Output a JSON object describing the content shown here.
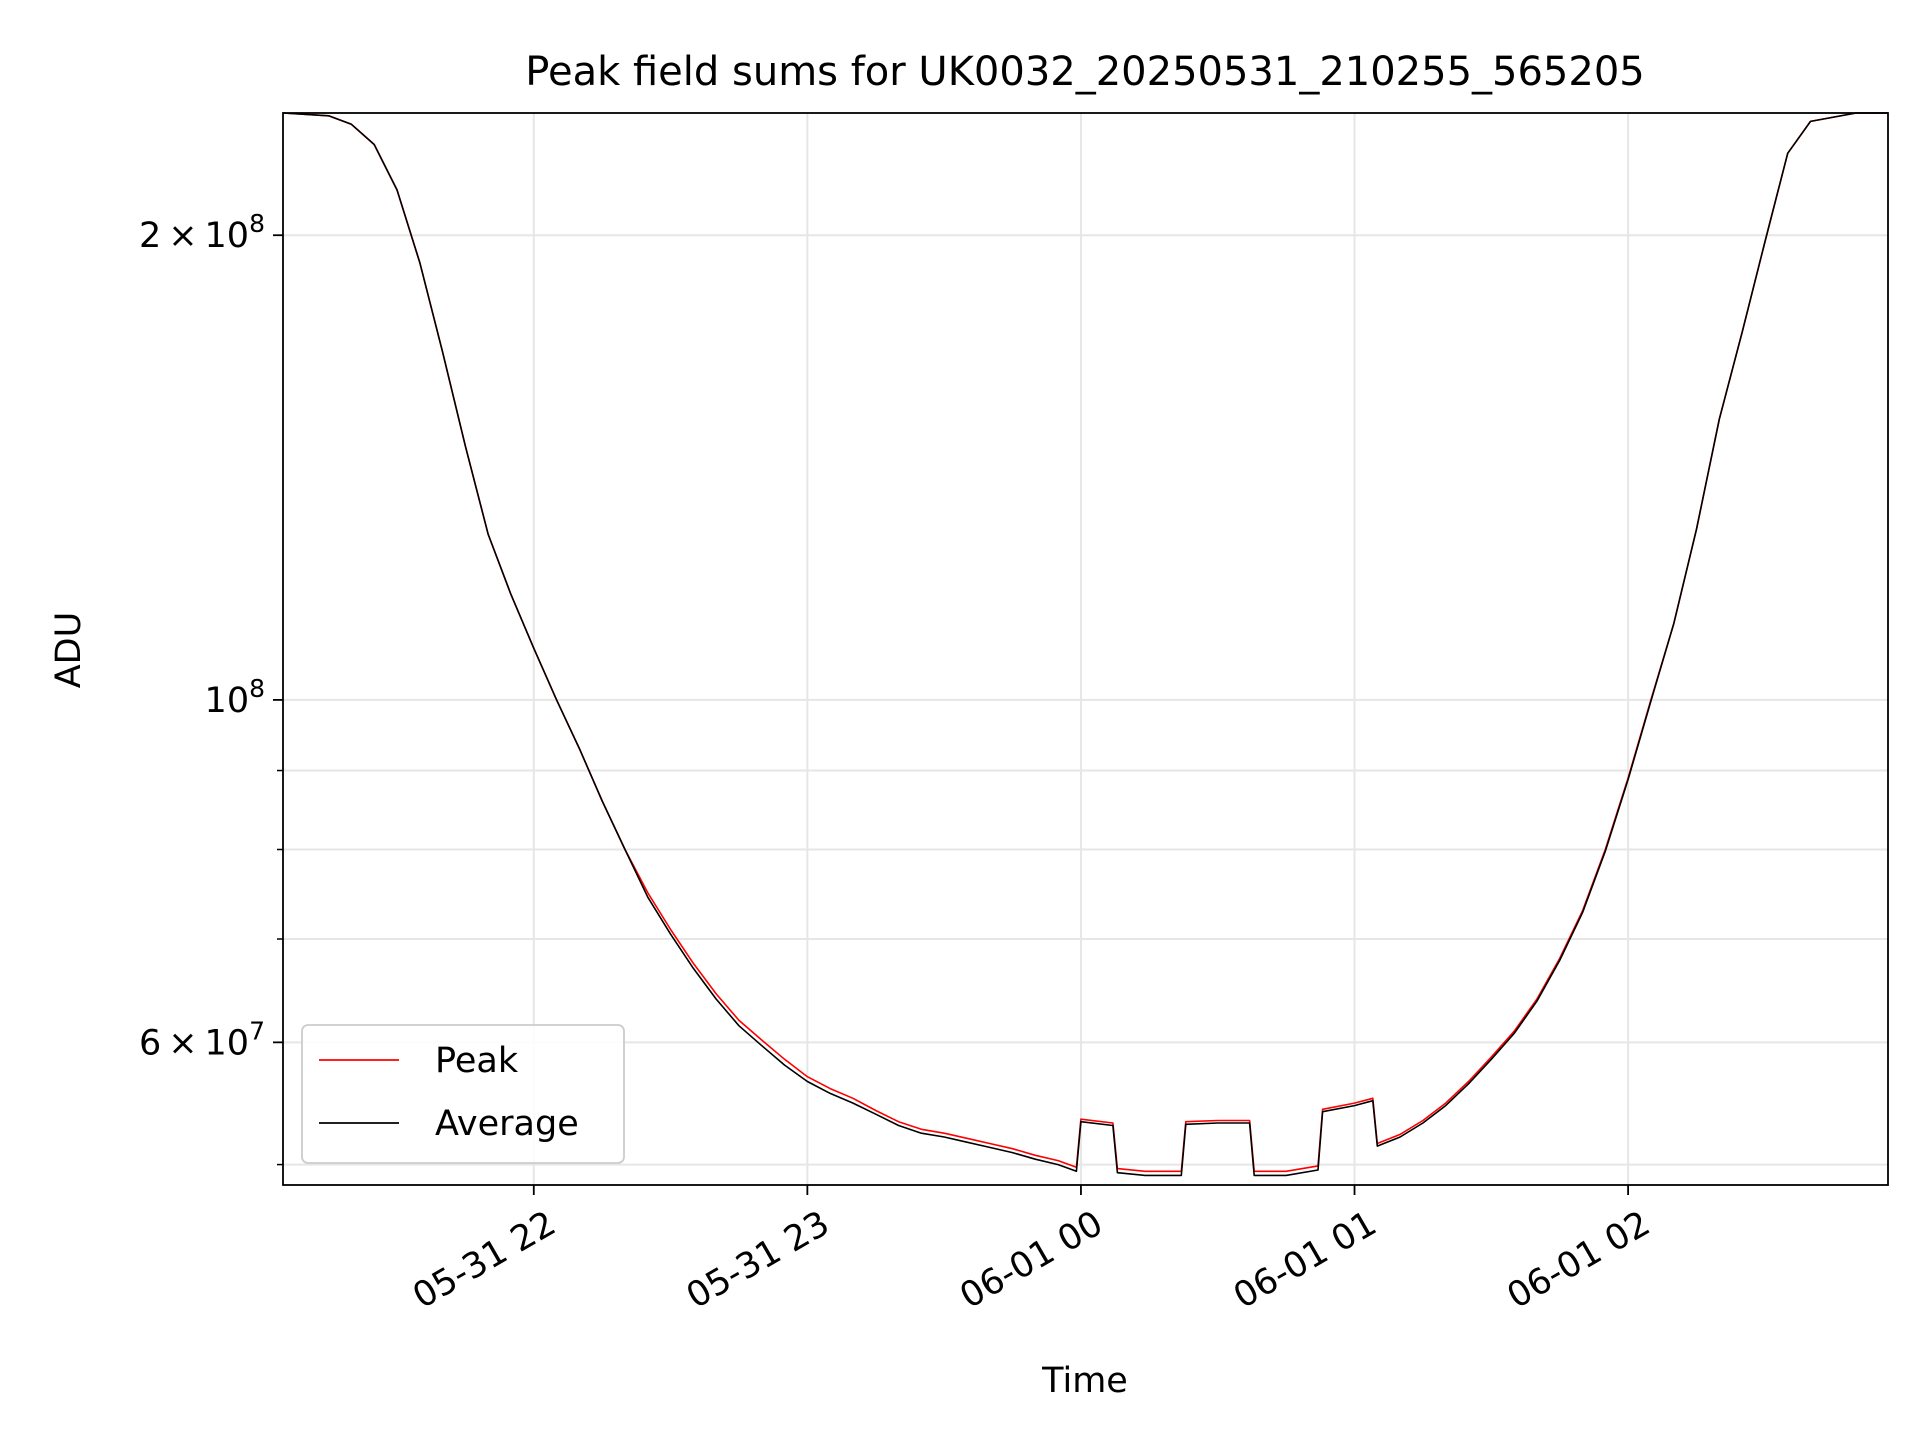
{
  "chart_data": {
    "type": "line",
    "title": "Peak field sums for UK0032_20250531_210255_565205",
    "xlabel": "Time",
    "ylabel": "ADU",
    "y_scale": "log",
    "x_range": [
      "2025-05-31 21:05",
      "2025-06-01 02:57"
    ],
    "ylim": [
      48500000,
      240000000
    ],
    "grid": true,
    "legend_position": "lower-left",
    "x_ticks": [
      {
        "t": "2025-05-31 22:00",
        "label": "05-31 22"
      },
      {
        "t": "2025-05-31 23:00",
        "label": "05-31 23"
      },
      {
        "t": "2025-06-01 00:00",
        "label": "06-01 00"
      },
      {
        "t": "2025-06-01 01:00",
        "label": "06-01 01"
      },
      {
        "t": "2025-06-01 02:00",
        "label": "06-01 02"
      }
    ],
    "y_ticks": [
      {
        "value": 200000000,
        "base": "2",
        "exp": "8"
      },
      {
        "value": 100000000,
        "base": "",
        "exp": "8"
      },
      {
        "value": 60000000,
        "base": "6",
        "exp": "7"
      }
    ],
    "y_minor_ticks": [
      50000000,
      70000000,
      80000000,
      90000000
    ],
    "series": [
      {
        "name": "Peak",
        "color": "#ff0000",
        "x": [
          "2025-05-31 21:05",
          "2025-05-31 21:15",
          "2025-05-31 21:20",
          "2025-05-31 21:25",
          "2025-05-31 21:30",
          "2025-05-31 21:35",
          "2025-05-31 21:40",
          "2025-05-31 21:45",
          "2025-05-31 21:50",
          "2025-05-31 21:55",
          "2025-05-31 22:00",
          "2025-05-31 22:05",
          "2025-05-31 22:10",
          "2025-05-31 22:15",
          "2025-05-31 22:20",
          "2025-05-31 22:25",
          "2025-05-31 22:30",
          "2025-05-31 22:35",
          "2025-05-31 22:40",
          "2025-05-31 22:45",
          "2025-05-31 22:50",
          "2025-05-31 22:55",
          "2025-05-31 23:00",
          "2025-05-31 23:05",
          "2025-05-31 23:10",
          "2025-05-31 23:15",
          "2025-05-31 23:20",
          "2025-05-31 23:25",
          "2025-05-31 23:30",
          "2025-05-31 23:35",
          "2025-05-31 23:40",
          "2025-05-31 23:45",
          "2025-05-31 23:50",
          "2025-05-31 23:55",
          "2025-05-31 23:59",
          "2025-06-01 00:00",
          "2025-06-01 00:07",
          "2025-06-01 00:08",
          "2025-06-01 00:14",
          "2025-06-01 00:22",
          "2025-06-01 00:23",
          "2025-06-01 00:30",
          "2025-06-01 00:37",
          "2025-06-01 00:38",
          "2025-06-01 00:45",
          "2025-06-01 00:52",
          "2025-06-01 00:53",
          "2025-06-01 01:00",
          "2025-06-01 01:04",
          "2025-06-01 01:05",
          "2025-06-01 01:10",
          "2025-06-01 01:15",
          "2025-06-01 01:20",
          "2025-06-01 01:25",
          "2025-06-01 01:30",
          "2025-06-01 01:35",
          "2025-06-01 01:40",
          "2025-06-01 01:45",
          "2025-06-01 01:50",
          "2025-06-01 01:55",
          "2025-06-01 02:00",
          "2025-06-01 02:05",
          "2025-06-01 02:10",
          "2025-06-01 02:15",
          "2025-06-01 02:20",
          "2025-06-01 02:25",
          "2025-06-01 02:30",
          "2025-06-01 02:35",
          "2025-06-01 02:40",
          "2025-06-01 02:50",
          "2025-06-01 02:57"
        ],
        "y": [
          240000000,
          239000000,
          236000000,
          229000000,
          214000000,
          192000000,
          168000000,
          146000000,
          128000000,
          117000000,
          108000000,
          100000000,
          93000000,
          86000000,
          80000000,
          75000000,
          71000000,
          67500000,
          64500000,
          62000000,
          60200000,
          58500000,
          57000000,
          56000000,
          55200000,
          54200000,
          53300000,
          52700000,
          52400000,
          52000000,
          51600000,
          51200000,
          50700000,
          50300000,
          49800000,
          53500000,
          53200000,
          49700000,
          49500000,
          49500000,
          53300000,
          53400000,
          53400000,
          49500000,
          49500000,
          49900000,
          54300000,
          54800000,
          55200000,
          51600000,
          52300000,
          53400000,
          54800000,
          56600000,
          58700000,
          61000000,
          64000000,
          68000000,
          73000000,
          80000000,
          89000000,
          100000000,
          112000000,
          129000000,
          152000000,
          173000000,
          198000000,
          226000000,
          237000000,
          240000000,
          240000000
        ]
      },
      {
        "name": "Average",
        "color": "#000000",
        "x": [
          "2025-05-31 21:05",
          "2025-05-31 21:15",
          "2025-05-31 21:20",
          "2025-05-31 21:25",
          "2025-05-31 21:30",
          "2025-05-31 21:35",
          "2025-05-31 21:40",
          "2025-05-31 21:45",
          "2025-05-31 21:50",
          "2025-05-31 21:55",
          "2025-05-31 22:00",
          "2025-05-31 22:05",
          "2025-05-31 22:10",
          "2025-05-31 22:15",
          "2025-05-31 22:20",
          "2025-05-31 22:25",
          "2025-05-31 22:30",
          "2025-05-31 22:35",
          "2025-05-31 22:40",
          "2025-05-31 22:45",
          "2025-05-31 22:50",
          "2025-05-31 22:55",
          "2025-05-31 23:00",
          "2025-05-31 23:05",
          "2025-05-31 23:10",
          "2025-05-31 23:15",
          "2025-05-31 23:20",
          "2025-05-31 23:25",
          "2025-05-31 23:30",
          "2025-05-31 23:35",
          "2025-05-31 23:40",
          "2025-05-31 23:45",
          "2025-05-31 23:50",
          "2025-05-31 23:55",
          "2025-05-31 23:59",
          "2025-06-01 00:00",
          "2025-06-01 00:07",
          "2025-06-01 00:08",
          "2025-06-01 00:14",
          "2025-06-01 00:22",
          "2025-06-01 00:23",
          "2025-06-01 00:30",
          "2025-06-01 00:37",
          "2025-06-01 00:38",
          "2025-06-01 00:45",
          "2025-06-01 00:52",
          "2025-06-01 00:53",
          "2025-06-01 01:00",
          "2025-06-01 01:04",
          "2025-06-01 01:05",
          "2025-06-01 01:10",
          "2025-06-01 01:15",
          "2025-06-01 01:20",
          "2025-06-01 01:25",
          "2025-06-01 01:30",
          "2025-06-01 01:35",
          "2025-06-01 01:40",
          "2025-06-01 01:45",
          "2025-06-01 01:50",
          "2025-06-01 01:55",
          "2025-06-01 02:00",
          "2025-06-01 02:05",
          "2025-06-01 02:10",
          "2025-06-01 02:15",
          "2025-06-01 02:20",
          "2025-06-01 02:25",
          "2025-06-01 02:30",
          "2025-06-01 02:35",
          "2025-06-01 02:40",
          "2025-06-01 02:50",
          "2025-06-01 02:57"
        ],
        "y": [
          240000000,
          239000000,
          236000000,
          229000000,
          214000000,
          192000000,
          168000000,
          146000000,
          128000000,
          117000000,
          108000000,
          100000000,
          93000000,
          86000000,
          80000000,
          74500000,
          70500000,
          67000000,
          64000000,
          61500000,
          59700000,
          58000000,
          56600000,
          55600000,
          54800000,
          53900000,
          53000000,
          52400000,
          52100000,
          51700000,
          51300000,
          50900000,
          50400000,
          50000000,
          49500000,
          53300000,
          53000000,
          49400000,
          49200000,
          49200000,
          53100000,
          53200000,
          53200000,
          49200000,
          49200000,
          49600000,
          54100000,
          54600000,
          55000000,
          51400000,
          52100000,
          53200000,
          54600000,
          56400000,
          58500000,
          60800000,
          63800000,
          67800000,
          72800000,
          79800000,
          88800000,
          99800000,
          112000000,
          129000000,
          152000000,
          173000000,
          198000000,
          226000000,
          237000000,
          240000000,
          240000000
        ]
      }
    ]
  }
}
